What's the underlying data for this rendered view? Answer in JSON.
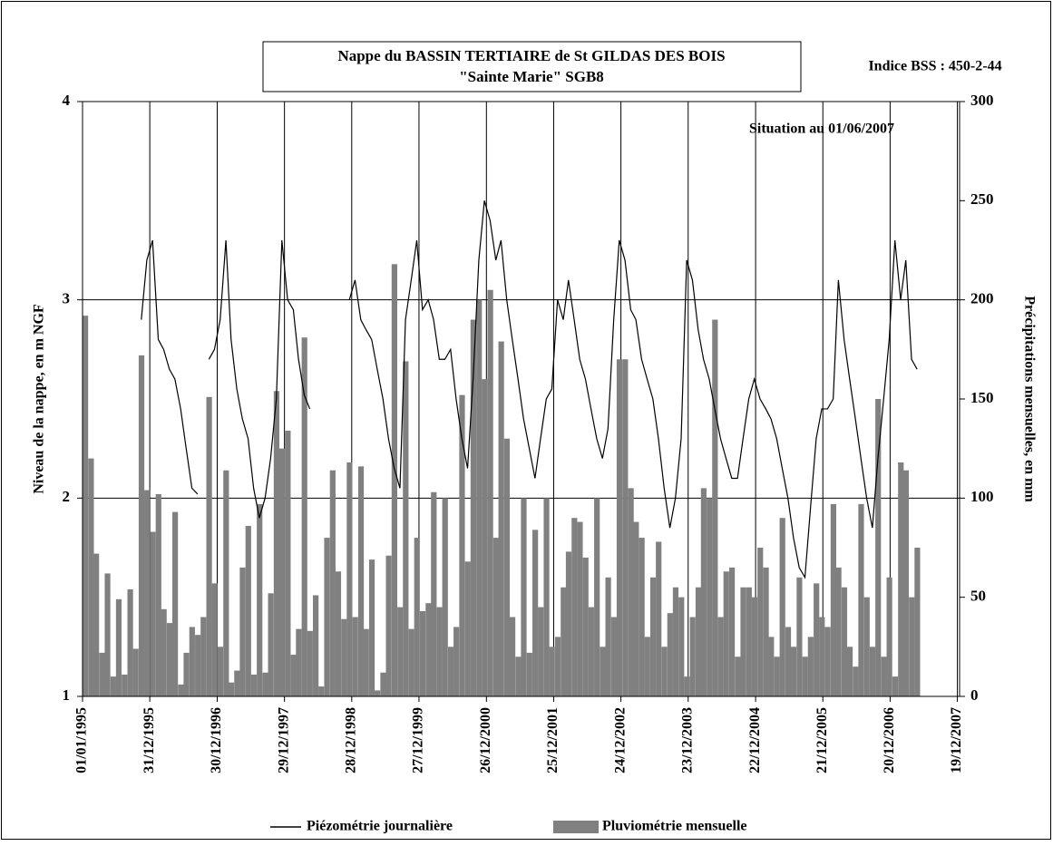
{
  "chart_data": {
    "type": "bar-line",
    "title": "Nappe du BASSIN TERTIAIRE de St GILDAS DES BOIS",
    "subtitle": "\"Sainte Marie\" SGB8",
    "annotations": [
      "Indice BSS : 450-2-44",
      "Situation au 01/06/2007"
    ],
    "y_label": "Niveau de la nappe, en m NGF",
    "y2_label": "Précipitations mensuelles, en mm",
    "xlim": [
      "1995-01-01",
      "2007-12-31"
    ],
    "xticks": [
      {
        "value": "1995-01-01",
        "label": "01/01/1995"
      },
      {
        "value": "1995-12-31",
        "label": "31/12/1995"
      },
      {
        "value": "1996-12-30",
        "label": "30/12/1996"
      },
      {
        "value": "1997-12-29",
        "label": "29/12/1997"
      },
      {
        "value": "1998-12-28",
        "label": "28/12/1998"
      },
      {
        "value": "1999-12-27",
        "label": "27/12/1999"
      },
      {
        "value": "2000-12-26",
        "label": "26/12/2000"
      },
      {
        "value": "2001-12-25",
        "label": "25/12/2001"
      },
      {
        "value": "2002-12-24",
        "label": "24/12/2002"
      },
      {
        "value": "2003-12-23",
        "label": "23/12/2003"
      },
      {
        "value": "2004-12-22",
        "label": "22/12/2004"
      },
      {
        "value": "2005-12-21",
        "label": "21/12/2005"
      },
      {
        "value": "2006-12-20",
        "label": "20/12/2006"
      },
      {
        "value": "2007-12-19",
        "label": "19/12/2007"
      }
    ],
    "ylim": [
      1,
      4
    ],
    "yticks": [
      1,
      2,
      3,
      4
    ],
    "y2lim": [
      0,
      300
    ],
    "y2ticks": [
      0,
      50,
      100,
      150,
      200,
      250,
      300
    ],
    "grid": true,
    "series": [
      {
        "name": "Piézométrie journalière",
        "type": "line",
        "color": "#000000",
        "x": [
          "1995-11-15",
          "1995-12-15",
          "1996-01-15",
          "1996-02-15",
          "1996-03-15",
          "1996-04-15",
          "1996-05-15",
          "1996-06-15",
          "1996-07-15",
          "1996-08-15",
          "1996-09-15",
          "1996-10-15",
          "1996-11-15",
          "1996-12-15",
          "1997-01-15",
          "1997-02-15",
          "1997-03-15",
          "1997-04-15",
          "1997-05-15",
          "1997-06-15",
          "1997-07-15",
          "1997-08-15",
          "1997-09-15",
          "1997-10-15",
          "1997-11-15",
          "1997-12-15",
          "1998-01-15",
          "1998-02-15",
          "1998-03-15",
          "1998-04-15",
          "1998-05-15",
          "1998-06-15",
          "1998-07-15",
          "1998-08-15",
          "1998-09-15",
          "1998-10-15",
          "1998-11-15",
          "1998-12-15",
          "1999-01-15",
          "1999-02-15",
          "1999-03-15",
          "1999-04-15",
          "1999-05-15",
          "1999-06-15",
          "1999-07-15",
          "1999-08-15",
          "1999-09-15",
          "1999-10-15",
          "1999-11-15",
          "1999-12-15",
          "2000-01-15",
          "2000-02-15",
          "2000-03-15",
          "2000-04-15",
          "2000-05-15",
          "2000-06-15",
          "2000-07-15",
          "2000-08-15",
          "2000-09-15",
          "2000-10-15",
          "2000-11-15",
          "2000-12-15",
          "2001-01-15",
          "2001-02-15",
          "2001-03-15",
          "2001-04-15",
          "2001-05-15",
          "2001-06-15",
          "2001-07-15",
          "2001-08-15",
          "2001-09-15",
          "2001-10-15",
          "2001-11-15",
          "2001-12-15",
          "2002-01-15",
          "2002-02-15",
          "2002-03-15",
          "2002-04-15",
          "2002-05-15",
          "2002-06-15",
          "2002-07-15",
          "2002-08-15",
          "2002-09-15",
          "2002-10-15",
          "2002-11-15",
          "2002-12-15",
          "2003-01-15",
          "2003-02-15",
          "2003-03-15",
          "2003-04-15",
          "2003-05-15",
          "2003-06-15",
          "2003-07-15",
          "2003-08-15",
          "2003-09-15",
          "2003-10-15",
          "2003-11-15",
          "2003-12-15",
          "2004-01-15",
          "2004-02-15",
          "2004-03-15",
          "2004-04-15",
          "2004-05-15",
          "2004-06-15",
          "2004-07-15",
          "2004-08-15",
          "2004-09-15",
          "2004-10-15",
          "2004-11-15",
          "2004-12-15",
          "2005-01-15",
          "2005-02-15",
          "2005-03-15",
          "2005-04-15",
          "2005-05-15",
          "2005-06-15",
          "2005-07-15",
          "2005-08-15",
          "2005-09-15",
          "2005-10-15",
          "2005-11-15",
          "2005-12-15",
          "2006-01-15",
          "2006-02-15",
          "2006-03-15",
          "2006-04-15",
          "2006-05-15",
          "2006-06-15",
          "2006-07-15",
          "2006-08-15",
          "2006-09-15",
          "2006-10-15",
          "2006-11-15",
          "2006-12-15",
          "2007-01-15",
          "2007-02-15",
          "2007-03-15",
          "2007-04-15",
          "2007-05-15"
        ],
        "values": [
          2.9,
          3.2,
          3.3,
          2.8,
          2.75,
          2.65,
          2.6,
          2.45,
          2.25,
          2.05,
          2.02,
          null,
          2.7,
          2.75,
          2.9,
          3.3,
          2.8,
          2.55,
          2.4,
          2.3,
          2.05,
          1.9,
          2.0,
          2.2,
          2.5,
          3.3,
          3.0,
          2.95,
          2.7,
          2.52,
          2.45,
          null,
          null,
          null,
          null,
          null,
          null,
          3.0,
          3.1,
          2.9,
          2.85,
          2.8,
          2.65,
          2.5,
          2.3,
          2.15,
          2.05,
          2.9,
          3.1,
          3.3,
          2.95,
          3.0,
          2.9,
          2.7,
          2.7,
          2.75,
          2.5,
          2.3,
          2.15,
          2.6,
          3.2,
          3.5,
          3.4,
          3.2,
          3.3,
          3.0,
          2.8,
          2.6,
          2.4,
          2.25,
          2.1,
          2.3,
          2.5,
          2.55,
          3.0,
          2.9,
          3.1,
          2.9,
          2.7,
          2.6,
          2.45,
          2.3,
          2.2,
          2.35,
          2.9,
          3.3,
          3.2,
          2.95,
          2.9,
          2.7,
          2.6,
          2.5,
          2.3,
          2.05,
          1.85,
          2.0,
          2.3,
          3.2,
          3.1,
          2.85,
          2.7,
          2.6,
          2.45,
          2.3,
          2.2,
          2.1,
          2.1,
          2.3,
          2.5,
          2.6,
          2.5,
          2.45,
          2.4,
          2.3,
          2.15,
          2.0,
          1.8,
          1.65,
          1.6,
          1.95,
          2.3,
          2.45,
          2.45,
          2.5,
          3.1,
          2.8,
          2.6,
          2.4,
          2.2,
          2.0,
          1.85,
          2.2,
          2.5,
          2.8,
          3.3,
          3.0,
          3.2,
          2.7,
          2.65
        ]
      },
      {
        "name": "Pluviométrie mensuelle",
        "type": "bar",
        "axis": "y2",
        "color": "#808080",
        "x": [
          "1995-01-01",
          "1995-02-01",
          "1995-03-01",
          "1995-04-01",
          "1995-05-01",
          "1995-06-01",
          "1995-07-01",
          "1995-08-01",
          "1995-09-01",
          "1995-10-01",
          "1995-11-01",
          "1995-12-01",
          "1996-01-01",
          "1996-02-01",
          "1996-03-01",
          "1996-04-01",
          "1996-05-01",
          "1996-06-01",
          "1996-07-01",
          "1996-08-01",
          "1996-09-01",
          "1996-10-01",
          "1996-11-01",
          "1996-12-01",
          "1997-01-01",
          "1997-02-01",
          "1997-03-01",
          "1997-04-01",
          "1997-05-01",
          "1997-06-01",
          "1997-07-01",
          "1997-08-01",
          "1997-09-01",
          "1997-10-01",
          "1997-11-01",
          "1997-12-01",
          "1998-01-01",
          "1998-02-01",
          "1998-03-01",
          "1998-04-01",
          "1998-05-01",
          "1998-06-01",
          "1998-07-01",
          "1998-08-01",
          "1998-09-01",
          "1998-10-01",
          "1998-11-01",
          "1998-12-01",
          "1999-01-01",
          "1999-02-01",
          "1999-03-01",
          "1999-04-01",
          "1999-05-01",
          "1999-06-01",
          "1999-07-01",
          "1999-08-01",
          "1999-09-01",
          "1999-10-01",
          "1999-11-01",
          "1999-12-01",
          "2000-01-01",
          "2000-02-01",
          "2000-03-01",
          "2000-04-01",
          "2000-05-01",
          "2000-06-01",
          "2000-07-01",
          "2000-08-01",
          "2000-09-01",
          "2000-10-01",
          "2000-11-01",
          "2000-12-01",
          "2001-01-01",
          "2001-02-01",
          "2001-03-01",
          "2001-04-01",
          "2001-05-01",
          "2001-06-01",
          "2001-07-01",
          "2001-08-01",
          "2001-09-01",
          "2001-10-01",
          "2001-11-01",
          "2001-12-01",
          "2002-01-01",
          "2002-02-01",
          "2002-03-01",
          "2002-04-01",
          "2002-05-01",
          "2002-06-01",
          "2002-07-01",
          "2002-08-01",
          "2002-09-01",
          "2002-10-01",
          "2002-11-01",
          "2002-12-01",
          "2003-01-01",
          "2003-02-01",
          "2003-03-01",
          "2003-04-01",
          "2003-05-01",
          "2003-06-01",
          "2003-07-01",
          "2003-08-01",
          "2003-09-01",
          "2003-10-01",
          "2003-11-01",
          "2003-12-01",
          "2004-01-01",
          "2004-02-01",
          "2004-03-01",
          "2004-04-01",
          "2004-05-01",
          "2004-06-01",
          "2004-07-01",
          "2004-08-01",
          "2004-09-01",
          "2004-10-01",
          "2004-11-01",
          "2004-12-01",
          "2005-01-01",
          "2005-02-01",
          "2005-03-01",
          "2005-04-01",
          "2005-05-01",
          "2005-06-01",
          "2005-07-01",
          "2005-08-01",
          "2005-09-01",
          "2005-10-01",
          "2005-11-01",
          "2005-12-01",
          "2006-01-01",
          "2006-02-01",
          "2006-03-01",
          "2006-04-01",
          "2006-05-01",
          "2006-06-01",
          "2006-07-01",
          "2006-08-01",
          "2006-09-01",
          "2006-10-01",
          "2006-11-01",
          "2006-12-01",
          "2007-01-01",
          "2007-02-01",
          "2007-03-01",
          "2007-04-01",
          "2007-05-01"
        ],
        "values": [
          192,
          120,
          72,
          22,
          62,
          10,
          49,
          11,
          54,
          24,
          172,
          104,
          83,
          102,
          44,
          37,
          93,
          6,
          22,
          35,
          31,
          40,
          151,
          57,
          25,
          114,
          7,
          13,
          65,
          86,
          11,
          97,
          12,
          52,
          154,
          125,
          134,
          21,
          34,
          181,
          33,
          51,
          5,
          80,
          114,
          63,
          39,
          118,
          40,
          116,
          34,
          69,
          3,
          12,
          71,
          218,
          45,
          169,
          34,
          80,
          43,
          47,
          103,
          45,
          100,
          25,
          35,
          152,
          68,
          190,
          200,
          160,
          205,
          80,
          179,
          130,
          40,
          20,
          100,
          22,
          84,
          45,
          100,
          25,
          30,
          55,
          73,
          90,
          88,
          70,
          45,
          100,
          25,
          60,
          40,
          170,
          170,
          105,
          88,
          80,
          30,
          60,
          78,
          25,
          42,
          55,
          50,
          10,
          40,
          55,
          105,
          100,
          190,
          40,
          63,
          65,
          20,
          55,
          55,
          50,
          75,
          65,
          30,
          20,
          90,
          35,
          25,
          60,
          20,
          30,
          57,
          40,
          35,
          97,
          65,
          55,
          25,
          15,
          97,
          50,
          25,
          150,
          20,
          60,
          10,
          118,
          114,
          50,
          75
        ]
      }
    ]
  }
}
